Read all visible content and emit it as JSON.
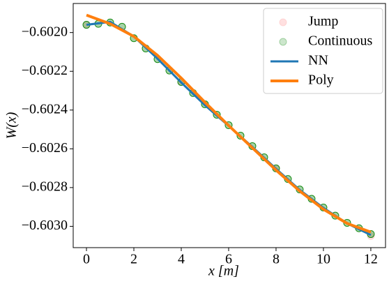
{
  "chart_data": {
    "type": "scatter",
    "xlabel": "x [m]",
    "ylabel": "W(x)",
    "xlim": [
      -0.56,
      12.62
    ],
    "xticks": [
      0,
      2,
      4,
      6,
      8,
      10,
      12
    ],
    "ylim": [
      -0.60311,
      -0.60185
    ],
    "yticks": [
      {
        "value": -0.602,
        "label": "−0.6020"
      },
      {
        "value": -0.6022,
        "label": "−0.6022"
      },
      {
        "value": -0.6024,
        "label": "−0.6024"
      },
      {
        "value": -0.6026,
        "label": "−0.6026"
      },
      {
        "value": -0.6028,
        "label": "−0.6028"
      },
      {
        "value": -0.603,
        "label": "−0.6030"
      }
    ],
    "legend": "upper right",
    "series": [
      {
        "name": "Jump",
        "style": "marker",
        "color": "#ff9999",
        "x": [
          0,
          4,
          8,
          12
        ],
        "values": [
          -0.60196,
          -0.602255,
          -0.602701,
          -0.60305
        ]
      },
      {
        "name": "Continuous",
        "style": "marker",
        "color": "#008000",
        "x": [
          0,
          0.5,
          1,
          1.5,
          2,
          2.5,
          3,
          3.5,
          4,
          4.5,
          5,
          5.5,
          6,
          6.5,
          7,
          7.5,
          8,
          8.5,
          9,
          9.5,
          10,
          10.5,
          11,
          11.5,
          12
        ],
        "values": [
          -0.60196,
          -0.601955,
          -0.601948,
          -0.60197,
          -0.602029,
          -0.602082,
          -0.602137,
          -0.602196,
          -0.602255,
          -0.602312,
          -0.60237,
          -0.602424,
          -0.602478,
          -0.602532,
          -0.602586,
          -0.602644,
          -0.602701,
          -0.602756,
          -0.60281,
          -0.602858,
          -0.602903,
          -0.602945,
          -0.602982,
          -0.60301,
          -0.60304
        ]
      },
      {
        "name": "NN",
        "style": "line",
        "color": "#1f77b4",
        "x": [
          0,
          1,
          2,
          3,
          4,
          5,
          6,
          7,
          8,
          9,
          10,
          11,
          12
        ],
        "values": [
          -0.60196,
          -0.601945,
          -0.60202,
          -0.602135,
          -0.602258,
          -0.602375,
          -0.602482,
          -0.60259,
          -0.602703,
          -0.602812,
          -0.602905,
          -0.602985,
          -0.603045
        ]
      },
      {
        "name": "Poly",
        "style": "line",
        "color": "#ff7f0e",
        "x": [
          0,
          1,
          2,
          3,
          4,
          5,
          6,
          7,
          8,
          9,
          10,
          11,
          12
        ],
        "values": [
          -0.60191,
          -0.601955,
          -0.60202,
          -0.602118,
          -0.602235,
          -0.60236,
          -0.60248,
          -0.602595,
          -0.60271,
          -0.602818,
          -0.602912,
          -0.602985,
          -0.60303
        ]
      }
    ]
  }
}
